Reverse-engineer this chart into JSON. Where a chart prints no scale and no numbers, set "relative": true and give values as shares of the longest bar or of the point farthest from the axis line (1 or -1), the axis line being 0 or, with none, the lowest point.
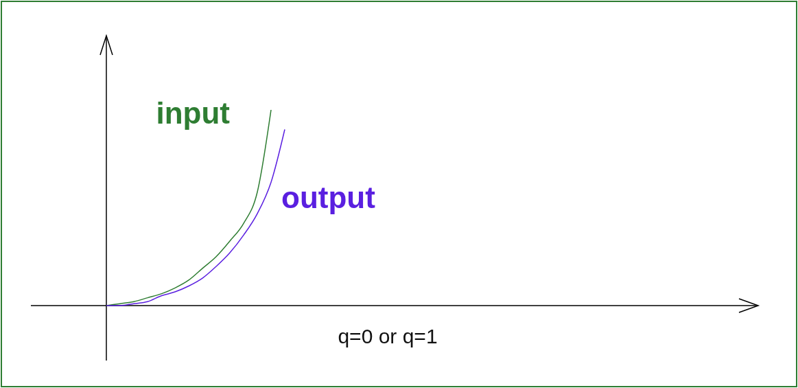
{
  "chart_data": {
    "type": "line",
    "relative": true,
    "categories": [
      null,
      null,
      null,
      null,
      null,
      null,
      null,
      null,
      null,
      null,
      null,
      null,
      null,
      null,
      null,
      null,
      null,
      null,
      null,
      null,
      null,
      null,
      null,
      null,
      null,
      null,
      null,
      null,
      null,
      null,
      null,
      null,
      null,
      null,
      null,
      null,
      null,
      null,
      null,
      null,
      null,
      null,
      null,
      null,
      null,
      null,
      null,
      null
    ],
    "series": [
      {
        "name": "input",
        "color": "#2e7d32",
        "values": [
          0,
          0.01,
          0.02,
          0.04,
          0.06,
          0.09,
          0.13,
          0.19,
          0.25,
          0.33,
          0.42,
          0.58,
          1,
          null,
          null,
          null,
          null,
          null,
          null,
          null,
          null,
          null,
          null,
          null,
          null,
          null,
          null,
          null,
          null,
          null,
          null,
          null,
          null,
          null,
          null,
          null,
          null,
          null,
          null,
          null,
          null,
          null,
          null,
          null,
          null,
          null,
          null,
          null
        ]
      },
      {
        "name": "output",
        "color": "#5a1fe0",
        "values": [
          0,
          0,
          0.01,
          0.02,
          0.05,
          0.07,
          0.1,
          0.14,
          0.2,
          0.27,
          0.36,
          0.47,
          0.63,
          0.9,
          null,
          null,
          null,
          null,
          null,
          null,
          null,
          null,
          null,
          null,
          null,
          null,
          null,
          null,
          null,
          null,
          null,
          null,
          null,
          null,
          null,
          null,
          null,
          null,
          null,
          null,
          null,
          null,
          null,
          null,
          null,
          null,
          null,
          null
        ]
      }
    ],
    "annotations": [
      "q=0 or q=1"
    ]
  }
}
